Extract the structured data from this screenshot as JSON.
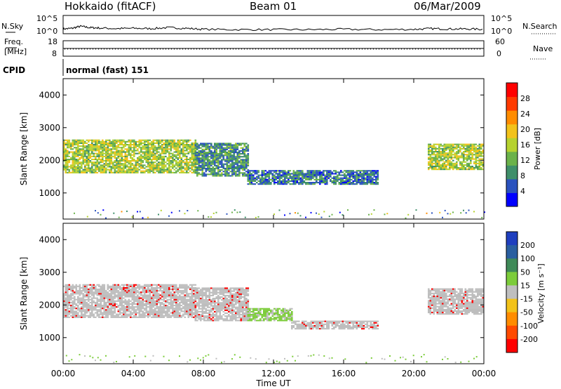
{
  "header": {
    "radar_title": "Hokkaido (fitACF)",
    "beam_label": "Beam 01",
    "date_label": "06/Mar/2009"
  },
  "noise_panel": {
    "left_label": "N.Sky",
    "right_label": "N.Search",
    "top_tick": "10^5",
    "bottom_tick": "10^0"
  },
  "freq_panel": {
    "left_label_line1": "Freq.",
    "left_label_line2": "[MHz]",
    "left_ticks": [
      "18",
      "8"
    ],
    "right_label": "Nave",
    "right_ticks": [
      "60",
      "0"
    ]
  },
  "cpid_panel": {
    "label": "CPID",
    "mode_text": "normal (fast) 151"
  },
  "colors": {
    "power_scale": [
      "#0000ff",
      "#2a52be",
      "#3f8f6a",
      "#6bb24a",
      "#b6d22f",
      "#f2c21a",
      "#ff8c00",
      "#ff3a00",
      "#ff0000"
    ],
    "velocity_scale": [
      "#1f3fbf",
      "#2a5fa0",
      "#3f8a58",
      "#7ccc3a",
      "#bfbfbf",
      "#f2c21a",
      "#ff8c00",
      "#ff4a00",
      "#ff0000"
    ],
    "scatter_gray": "#bdbdbd"
  },
  "chart_data": [
    {
      "type": "line",
      "panel": "noise",
      "ylabel": "N.Sky",
      "x": [
        0,
        0.5,
        1,
        1.5,
        2,
        3,
        4,
        5,
        6,
        7,
        8,
        10,
        12,
        14,
        16,
        18,
        20,
        21,
        22,
        23,
        24
      ],
      "series": [
        {
          "values": [
            1.2,
            1.4,
            2.0,
            1.6,
            1.5,
            1.3,
            1.4,
            1.3,
            1.6,
            1.4,
            1.1,
            1.0,
            1.0,
            1.0,
            1.1,
            1.0,
            1.1,
            1.3,
            1.2,
            1.2,
            1.1
          ]
        }
      ],
      "ylim": [
        0,
        5
      ],
      "yticks": [
        "10^0",
        "10^5"
      ]
    },
    {
      "type": "scatter",
      "panel": "frequency",
      "xlim": [
        0,
        24
      ],
      "ylim_left": [
        8,
        18
      ],
      "ylim_right": [
        0,
        60
      ],
      "freq_mhz": 12,
      "nave": 20
    },
    {
      "type": "heatmap",
      "panel": "power",
      "ylabel": "Slant Range [km]",
      "xlabel": "Time UT",
      "xlim": [
        0,
        24
      ],
      "ylim": [
        200,
        4500
      ],
      "yticks": [
        1000,
        2000,
        3000,
        4000
      ],
      "xticks": [
        "00:00",
        "04:00",
        "08:00",
        "12:00",
        "16:00",
        "20:00",
        "00:00"
      ],
      "colorbar": {
        "label": "Power [dB]",
        "ticks": [
          4,
          8,
          12,
          16,
          20,
          24,
          28
        ],
        "range": [
          0,
          30
        ]
      },
      "echo_bands": [
        {
          "t_start": 0.0,
          "t_end": 7.5,
          "range_low": 1600,
          "range_high": 2600,
          "value_level": 14
        },
        {
          "t_start": 7.5,
          "t_end": 10.5,
          "range_low": 1500,
          "range_high": 2500,
          "value_level": 8
        },
        {
          "t_start": 10.5,
          "t_end": 18.0,
          "range_low": 1250,
          "range_high": 1700,
          "value_level": 6
        },
        {
          "t_start": 20.8,
          "t_end": 24.0,
          "range_low": 1700,
          "range_high": 2500,
          "value_level": 14
        }
      ]
    },
    {
      "type": "heatmap",
      "panel": "velocity",
      "ylabel": "Slant Range [km]",
      "xlabel": "Time UT",
      "xlim": [
        0,
        24
      ],
      "ylim": [
        200,
        4500
      ],
      "yticks": [
        1000,
        2000,
        3000,
        4000
      ],
      "xticks": [
        "00:00",
        "04:00",
        "08:00",
        "12:00",
        "16:00",
        "20:00",
        "00:00"
      ],
      "colorbar": {
        "label": "Velocity [m s⁻¹]",
        "ticks": [
          200,
          100,
          50,
          15,
          -15,
          -50,
          -100,
          -200
        ]
      },
      "echo_bands": [
        {
          "t_start": 0.0,
          "t_end": 7.5,
          "range_low": 1600,
          "range_high": 2600,
          "value_level": 0
        },
        {
          "t_start": 7.5,
          "t_end": 10.5,
          "range_low": 1500,
          "range_high": 2500,
          "value_level": 0
        },
        {
          "t_start": 10.5,
          "t_end": 13.0,
          "range_low": 1500,
          "range_high": 1900,
          "value_level": 30
        },
        {
          "t_start": 13.0,
          "t_end": 18.0,
          "range_low": 1250,
          "range_high": 1500,
          "value_level": 0
        },
        {
          "t_start": 20.8,
          "t_end": 24.0,
          "range_low": 1700,
          "range_high": 2500,
          "value_level": 0
        }
      ]
    }
  ]
}
